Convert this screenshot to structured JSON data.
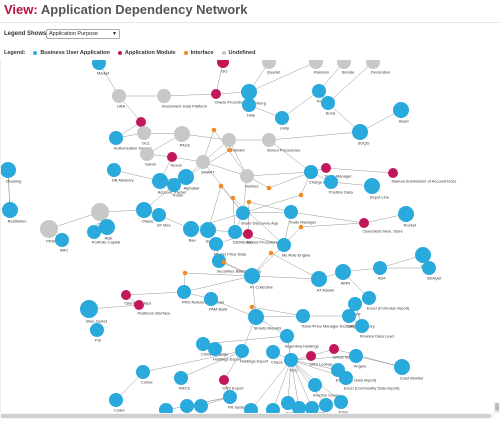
{
  "header": {
    "title_prefix": "View:",
    "title_name": "Application Dependency Network"
  },
  "controls": {
    "legend_shows_label": "Legend Shows:",
    "legend_shows_value": "Application Purpose"
  },
  "legend": {
    "label": "Legend:",
    "items": [
      {
        "label": "Business User Application",
        "color": "#29a9dc"
      },
      {
        "label": "Application Module",
        "color": "#c2185b"
      },
      {
        "label": "Interface",
        "color": "#f28c28"
      },
      {
        "label": "Undefined",
        "color": "#c8c8c8"
      }
    ]
  },
  "colors": {
    "business": "#29a9dc",
    "module": "#c2185b",
    "interface": "#f28c28",
    "undefined": "#c8c8c8",
    "edge": "#8a8a8a"
  },
  "nodes": [
    {
      "id": 1,
      "label": "Market",
      "kind": "business"
    },
    {
      "id": 2,
      "label": "GG",
      "kind": "module"
    },
    {
      "id": 3,
      "label": "Quartet",
      "kind": "undefined"
    },
    {
      "id": 4,
      "label": "Random",
      "kind": "undefined"
    },
    {
      "id": 5,
      "label": "Blonde",
      "kind": "undefined"
    },
    {
      "id": 6,
      "label": "Decoration",
      "kind": "undefined"
    },
    {
      "id": 7,
      "label": "UAA",
      "kind": "undefined"
    },
    {
      "id": 8,
      "label": "Investment Data Platform",
      "kind": "undefined"
    },
    {
      "id": 9,
      "label": "Bloomberg",
      "kind": "business"
    },
    {
      "id": 10,
      "label": "Oracle Procedure",
      "kind": "module"
    },
    {
      "id": 11,
      "label": "Rodeo",
      "kind": "business"
    },
    {
      "id": 12,
      "label": "Bond",
      "kind": "business"
    },
    {
      "id": 13,
      "label": "Asset",
      "kind": "business"
    },
    {
      "id": 14,
      "label": "Hide",
      "kind": "business"
    },
    {
      "id": 15,
      "label": "Shape",
      "kind": "module"
    },
    {
      "id": 16,
      "label": "GCL",
      "kind": "undefined"
    },
    {
      "id": 17,
      "label": "PACE",
      "kind": "undefined"
    },
    {
      "id": 18,
      "label": "Authorization System",
      "kind": "business"
    },
    {
      "id": 19,
      "label": "Unity",
      "kind": "business"
    },
    {
      "id": 20,
      "label": "Landmark",
      "kind": "undefined"
    },
    {
      "id": 21,
      "label": "Stored Procedures",
      "kind": "undefined"
    },
    {
      "id": 22,
      "label": "SOQD",
      "kind": "business"
    },
    {
      "id": 23,
      "label": "Gandi",
      "kind": "undefined"
    },
    {
      "id": 24,
      "label": "Nexus",
      "kind": "module"
    },
    {
      "id": 25,
      "label": "SMART",
      "kind": "undefined"
    },
    {
      "id": 26,
      "label": "Cleaning",
      "kind": "business"
    },
    {
      "id": 27,
      "label": "DB Advisory",
      "kind": "business"
    },
    {
      "id": 28,
      "label": "Account Tracker",
      "kind": "business"
    },
    {
      "id": 29,
      "label": "Alphabet",
      "kind": "business"
    },
    {
      "id": 30,
      "label": "Trader",
      "kind": "business"
    },
    {
      "id": 31,
      "label": "Holmes",
      "kind": "undefined"
    },
    {
      "id": 32,
      "label": "Charge Analysis",
      "kind": "business"
    },
    {
      "id": 33,
      "label": "Trade Manager",
      "kind": "module"
    },
    {
      "id": 34,
      "label": "Position Data",
      "kind": "business"
    },
    {
      "id": 35,
      "label": "Manual Submission of Account Docs",
      "kind": "module"
    },
    {
      "id": 36,
      "label": "Depot Line",
      "kind": "business"
    },
    {
      "id": 37,
      "label": "Restitution",
      "kind": "business"
    },
    {
      "id": 38,
      "label": "PRISM",
      "kind": "undefined"
    },
    {
      "id": 39,
      "label": "ODM",
      "kind": "undefined"
    },
    {
      "id": 40,
      "label": "Risk",
      "kind": "business"
    },
    {
      "id": 41,
      "label": "Oracle",
      "kind": "business"
    },
    {
      "id": 42,
      "label": "SF Mex",
      "kind": "business"
    },
    {
      "id": 43,
      "label": "Share Discovery App",
      "kind": "business"
    },
    {
      "id": 44,
      "label": "Trade Manager",
      "kind": "business"
    },
    {
      "id": 45,
      "label": "ARC",
      "kind": "business"
    },
    {
      "id": 46,
      "label": "Portfolio Capital",
      "kind": "business"
    },
    {
      "id": 47,
      "label": "Bau",
      "kind": "business"
    },
    {
      "id": 48,
      "label": "Smiths",
      "kind": "business"
    },
    {
      "id": 49,
      "label": "Operations Man. Store",
      "kind": "module"
    },
    {
      "id": 50,
      "label": "Rocket",
      "kind": "business"
    },
    {
      "id": 51,
      "label": "Distribution",
      "kind": "business"
    },
    {
      "id": 52,
      "label": "Stored Procedures",
      "kind": "module"
    },
    {
      "id": 53,
      "label": "Market Price Data",
      "kind": "business"
    },
    {
      "id": 54,
      "label": "My Rule Engine",
      "kind": "business"
    },
    {
      "id": 55,
      "label": "Securities Batch Process",
      "kind": "business"
    },
    {
      "id": 56,
      "label": "AT Collective",
      "kind": "business"
    },
    {
      "id": 57,
      "label": "AIRN",
      "kind": "business"
    },
    {
      "id": 58,
      "label": "ADF",
      "kind": "business"
    },
    {
      "id": 59,
      "label": "SEAM",
      "kind": "business"
    },
    {
      "id": 60,
      "label": "SEAQet",
      "kind": "business"
    },
    {
      "id": 61,
      "label": "AT Assets",
      "kind": "business"
    },
    {
      "id": 62,
      "label": "PRD Reference Upload",
      "kind": "business"
    },
    {
      "id": 63,
      "label": "Client Interface",
      "kind": "module"
    },
    {
      "id": 64,
      "label": "PAM Build",
      "kind": "business"
    },
    {
      "id": 65,
      "label": "Positions Interface",
      "kind": "module"
    },
    {
      "id": 66,
      "label": "Blue Jacket",
      "kind": "business"
    },
    {
      "id": 67,
      "label": "Excel (Formulas import)",
      "kind": "business"
    },
    {
      "id": 68,
      "label": "DHT",
      "kind": "business"
    },
    {
      "id": 69,
      "label": "Smarts Reports",
      "kind": "business"
    },
    {
      "id": 70,
      "label": "Ticker/Price Manager Exchange",
      "kind": "business"
    },
    {
      "id": 71,
      "label": "CAT Repository",
      "kind": "business"
    },
    {
      "id": 72,
      "label": "Finance Data Load",
      "kind": "business"
    },
    {
      "id": 73,
      "label": "FSI",
      "kind": "business"
    },
    {
      "id": 74,
      "label": "Argentina Holdings",
      "kind": "business"
    },
    {
      "id": 75,
      "label": "China Holdings",
      "kind": "business"
    },
    {
      "id": 76,
      "label": "Holdings Export",
      "kind": "business"
    },
    {
      "id": 77,
      "label": "CRSS Inclusion",
      "kind": "module"
    },
    {
      "id": 78,
      "label": "Crest Monitor",
      "kind": "business"
    },
    {
      "id": 79,
      "label": "Cortex",
      "kind": "business"
    },
    {
      "id": 80,
      "label": "Holdings Export",
      "kind": "business"
    },
    {
      "id": 81,
      "label": "Chaos",
      "kind": "business"
    },
    {
      "id": 82,
      "label": "Trico",
      "kind": "business"
    },
    {
      "id": 83,
      "label": "CRS Lookup",
      "kind": "module"
    },
    {
      "id": 84,
      "label": "Angelo",
      "kind": "business"
    },
    {
      "id": 85,
      "label": "Excel (FX Data import)",
      "kind": "business"
    },
    {
      "id": 86,
      "label": "KNCS",
      "kind": "business"
    },
    {
      "id": 87,
      "label": "Excel (Commodity Data import)",
      "kind": "business"
    },
    {
      "id": 88,
      "label": "CRS Export",
      "kind": "module"
    },
    {
      "id": 89,
      "label": "Investor Cover",
      "kind": "business"
    },
    {
      "id": 90,
      "label": "PB System",
      "kind": "business"
    },
    {
      "id": 91,
      "label": "Excel (Valuation Data)",
      "kind": "business"
    },
    {
      "id": 92,
      "label": "Coder",
      "kind": "business"
    },
    {
      "id": 93,
      "label": "ART",
      "kind": "business"
    },
    {
      "id": 94,
      "label": "Analyst",
      "kind": "business"
    },
    {
      "id": 95,
      "label": "Acoro",
      "kind": "business"
    },
    {
      "id": 96,
      "label": "AAD",
      "kind": "business"
    },
    {
      "id": 97,
      "label": "Jelly",
      "kind": "business"
    },
    {
      "id": 98,
      "label": "Ester",
      "kind": "business"
    },
    {
      "id": 99,
      "label": "Gold",
      "kind": "business"
    },
    {
      "id": 100,
      "label": "Ellis",
      "kind": "business"
    },
    {
      "id": 101,
      "label": "Wax",
      "kind": "business"
    }
  ]
}
